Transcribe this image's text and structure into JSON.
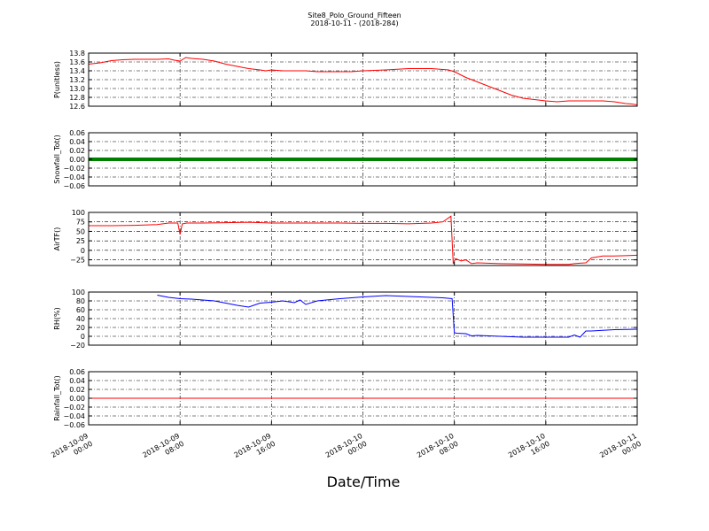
{
  "figure": {
    "title_line1": "Site8_Polo_Ground_Fifteen",
    "title_line2": "2018-10-11 - (2018-284)",
    "xlabel": "Date/Time",
    "x_tick_labels": [
      [
        "2018-10-09",
        "00:00"
      ],
      [
        "2018-10-09",
        "08:00"
      ],
      [
        "2018-10-09",
        "16:00"
      ],
      [
        "2018-10-10",
        "00:00"
      ],
      [
        "2018-10-10",
        "08:00"
      ],
      [
        "2018-10-10",
        "16:00"
      ],
      [
        "2018-10-11",
        "00:00"
      ]
    ]
  },
  "chart_data": [
    {
      "type": "line",
      "ylabel": "P(unitless)",
      "xlim": [
        "2018-10-09 00:00",
        "2018-10-11 00:00"
      ],
      "ylim": [
        12.6,
        13.8
      ],
      "yticks": [
        "13.8",
        "13.6",
        "13.4",
        "13.2",
        "13.0",
        "12.8",
        "12.6"
      ],
      "ytick_values": [
        13.8,
        13.6,
        13.4,
        13.2,
        13.0,
        12.8,
        12.6
      ],
      "grid": true,
      "series": [
        {
          "color": "#ff0000",
          "x_hours": [
            0,
            1,
            2,
            3,
            4,
            5,
            6,
            7,
            7.5,
            8,
            8.5,
            9,
            10,
            11,
            12,
            13,
            14,
            15,
            15.5,
            16,
            17,
            18,
            19,
            20,
            21,
            22,
            23,
            24,
            26,
            28,
            29,
            30,
            31,
            31.5,
            32,
            33,
            34,
            35,
            36,
            37,
            38,
            39,
            40,
            41,
            42,
            43,
            44,
            45,
            46,
            47,
            47.5,
            48
          ],
          "values": [
            13.55,
            13.58,
            13.63,
            13.65,
            13.66,
            13.66,
            13.66,
            13.67,
            13.64,
            13.62,
            13.7,
            13.68,
            13.66,
            13.62,
            13.55,
            13.5,
            13.45,
            13.42,
            13.4,
            13.42,
            13.4,
            13.4,
            13.4,
            13.38,
            13.38,
            13.38,
            13.38,
            13.4,
            13.42,
            13.45,
            13.45,
            13.45,
            13.43,
            13.42,
            13.38,
            13.25,
            13.15,
            13.05,
            12.95,
            12.85,
            12.78,
            12.75,
            12.72,
            12.7,
            12.72,
            12.72,
            12.72,
            12.72,
            12.7,
            12.66,
            12.65,
            12.63
          ]
        }
      ]
    },
    {
      "type": "line",
      "ylabel": "Snowfall_Tot()",
      "xlim": [
        "2018-10-09 00:00",
        "2018-10-11 00:00"
      ],
      "ylim": [
        -0.06,
        0.06
      ],
      "yticks": [
        "0.06",
        "0.04",
        "0.02",
        "0.00",
        "−0.02",
        "−0.04",
        "−0.06"
      ],
      "ytick_values": [
        0.06,
        0.04,
        0.02,
        0.0,
        -0.02,
        -0.04,
        -0.06
      ],
      "grid": true,
      "series": [
        {
          "color": "#007f00",
          "thick": true,
          "x_hours": [
            0,
            48
          ],
          "values": [
            0,
            0
          ]
        }
      ]
    },
    {
      "type": "line",
      "ylabel": "AirTF()",
      "xlim": [
        "2018-10-09 00:00",
        "2018-10-11 00:00"
      ],
      "ylim": [
        -40,
        100
      ],
      "yticks": [
        "100",
        "75",
        "50",
        "25",
        "0",
        "−25"
      ],
      "ytick_values": [
        100,
        75,
        50,
        25,
        0,
        -25
      ],
      "grid": true,
      "series": [
        {
          "color": "#ff0000",
          "x_hours": [
            0,
            2,
            4,
            6,
            7,
            7.8,
            8,
            8.2,
            8.6,
            10,
            12,
            14,
            16,
            18,
            20,
            22,
            24,
            26,
            28,
            30,
            31,
            31.7,
            31.9,
            32.1,
            32.6,
            33,
            33.5,
            34,
            36,
            38,
            40,
            42,
            42.5,
            43,
            43.5,
            44,
            45,
            46,
            47,
            48
          ],
          "values": [
            65,
            65,
            66,
            68,
            72,
            72,
            42,
            70,
            72,
            72,
            73,
            74,
            72,
            72,
            72,
            72,
            71,
            71,
            70,
            72,
            75,
            90,
            -35,
            -22,
            -28,
            -25,
            -35,
            -33,
            -35,
            -36,
            -37,
            -37,
            -35,
            -34,
            -33,
            -20,
            -15,
            -15,
            -14,
            -13
          ]
        }
      ]
    },
    {
      "type": "line",
      "ylabel": "RH(%)",
      "xlim": [
        "2018-10-09 00:00",
        "2018-10-11 00:00"
      ],
      "ylim": [
        -20,
        100
      ],
      "yticks": [
        "100",
        "80",
        "60",
        "40",
        "20",
        "0",
        "−20"
      ],
      "ytick_values": [
        100,
        80,
        60,
        40,
        20,
        0,
        -20
      ],
      "grid": true,
      "series": [
        {
          "color": "#0000ff",
          "x_hours": [
            6,
            7,
            8,
            9,
            10,
            11,
            12,
            13,
            14,
            15,
            16,
            17,
            18,
            18.5,
            19,
            20,
            22,
            24,
            26,
            28,
            30,
            31,
            31.8,
            32,
            32.2,
            33,
            33.5,
            34,
            36,
            38,
            40,
            42,
            42.5,
            43,
            43.5,
            44,
            46,
            48
          ],
          "values": [
            93,
            88,
            85,
            84,
            82,
            80,
            75,
            70,
            66,
            75,
            77,
            80,
            76,
            82,
            72,
            80,
            85,
            89,
            92,
            90,
            88,
            87,
            85,
            8,
            7,
            6,
            1,
            2,
            0,
            -2,
            -2,
            -2,
            3,
            -2,
            12,
            12,
            15,
            16
          ]
        }
      ]
    },
    {
      "type": "line",
      "ylabel": "Rainfall_Tot()",
      "xlim": [
        "2018-10-09 00:00",
        "2018-10-11 00:00"
      ],
      "ylim": [
        -0.06,
        0.06
      ],
      "yticks": [
        "0.06",
        "0.04",
        "0.02",
        "0.00",
        "−0.02",
        "−0.04",
        "−0.06"
      ],
      "ytick_values": [
        0.06,
        0.04,
        0.02,
        0.0,
        -0.02,
        -0.04,
        -0.06
      ],
      "grid": true,
      "series": [
        {
          "color": "#ff0000",
          "x_hours": [
            0,
            48
          ],
          "values": [
            0,
            0
          ]
        }
      ]
    }
  ]
}
